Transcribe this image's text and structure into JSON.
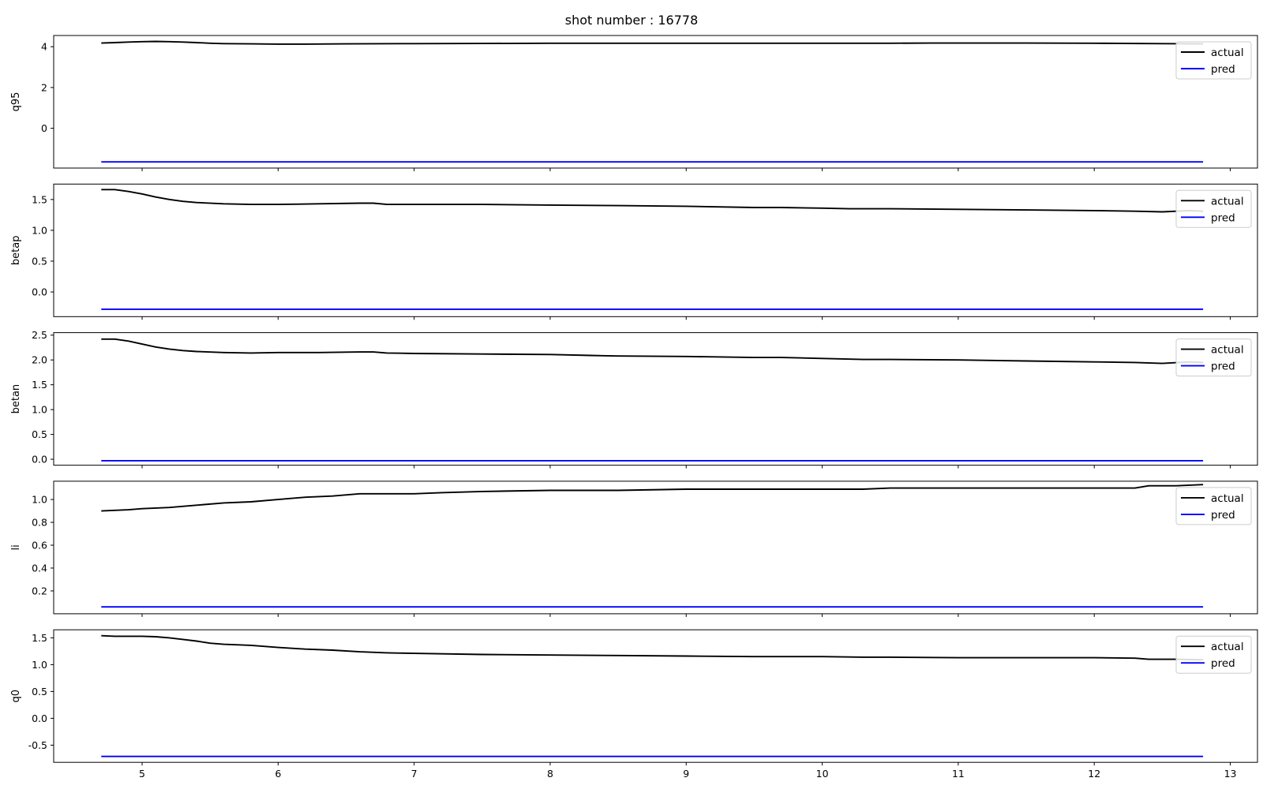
{
  "figure": {
    "title": "shot number : 16778"
  },
  "colors": {
    "actual": "#000000",
    "pred": "#0000ff"
  },
  "chart_data": [
    {
      "type": "line",
      "ylabel": "q95",
      "xlim": [
        4.35,
        13.2
      ],
      "ylim": [
        -1.95,
        4.55
      ],
      "xticks": [
        5,
        6,
        7,
        8,
        9,
        10,
        11,
        12,
        13
      ],
      "yticks": [
        0,
        2,
        4
      ],
      "legend": "top-right",
      "series": [
        {
          "name": "actual",
          "color": "#000000",
          "points": [
            [
              4.7,
              4.18
            ],
            [
              4.8,
              4.2
            ],
            [
              4.9,
              4.23
            ],
            [
              5.0,
              4.25
            ],
            [
              5.1,
              4.26
            ],
            [
              5.2,
              4.25
            ],
            [
              5.3,
              4.23
            ],
            [
              5.4,
              4.2
            ],
            [
              5.5,
              4.17
            ],
            [
              5.6,
              4.15
            ],
            [
              5.8,
              4.14
            ],
            [
              6.0,
              4.13
            ],
            [
              6.2,
              4.13
            ],
            [
              6.5,
              4.14
            ],
            [
              7.0,
              4.15
            ],
            [
              7.5,
              4.16
            ],
            [
              8.0,
              4.17
            ],
            [
              8.5,
              4.17
            ],
            [
              9.0,
              4.17
            ],
            [
              9.5,
              4.17
            ],
            [
              10.0,
              4.17
            ],
            [
              10.5,
              4.17
            ],
            [
              10.8,
              4.18
            ],
            [
              11.0,
              4.18
            ],
            [
              11.5,
              4.18
            ],
            [
              12.0,
              4.17
            ],
            [
              12.5,
              4.15
            ],
            [
              12.8,
              4.14
            ]
          ]
        },
        {
          "name": "pred",
          "color": "#0000ff",
          "points": [
            [
              4.7,
              -1.65
            ],
            [
              12.8,
              -1.65
            ]
          ]
        }
      ]
    },
    {
      "type": "line",
      "ylabel": "betap",
      "xlim": [
        4.35,
        13.2
      ],
      "ylim": [
        -0.4,
        1.75
      ],
      "xticks": [
        5,
        6,
        7,
        8,
        9,
        10,
        11,
        12,
        13
      ],
      "yticks": [
        0.0,
        0.5,
        1.0,
        1.5
      ],
      "legend": "top-right",
      "series": [
        {
          "name": "actual",
          "color": "#000000",
          "points": [
            [
              4.7,
              1.66
            ],
            [
              4.8,
              1.66
            ],
            [
              4.9,
              1.63
            ],
            [
              5.0,
              1.59
            ],
            [
              5.1,
              1.54
            ],
            [
              5.2,
              1.5
            ],
            [
              5.3,
              1.47
            ],
            [
              5.4,
              1.45
            ],
            [
              5.6,
              1.43
            ],
            [
              5.8,
              1.42
            ],
            [
              6.0,
              1.42
            ],
            [
              6.3,
              1.43
            ],
            [
              6.6,
              1.44
            ],
            [
              6.7,
              1.44
            ],
            [
              6.8,
              1.42
            ],
            [
              7.0,
              1.42
            ],
            [
              7.5,
              1.42
            ],
            [
              8.0,
              1.41
            ],
            [
              8.5,
              1.4
            ],
            [
              9.0,
              1.39
            ],
            [
              9.5,
              1.37
            ],
            [
              9.7,
              1.37
            ],
            [
              10.0,
              1.36
            ],
            [
              10.2,
              1.35
            ],
            [
              10.5,
              1.35
            ],
            [
              11.0,
              1.34
            ],
            [
              11.5,
              1.33
            ],
            [
              12.0,
              1.32
            ],
            [
              12.3,
              1.31
            ],
            [
              12.5,
              1.3
            ],
            [
              12.7,
              1.32
            ],
            [
              12.8,
              1.31
            ]
          ]
        },
        {
          "name": "pred",
          "color": "#0000ff",
          "points": [
            [
              4.7,
              -0.28
            ],
            [
              12.8,
              -0.28
            ]
          ]
        }
      ]
    },
    {
      "type": "line",
      "ylabel": "betan",
      "xlim": [
        4.35,
        13.2
      ],
      "ylim": [
        -0.12,
        2.55
      ],
      "xticks": [
        5,
        6,
        7,
        8,
        9,
        10,
        11,
        12,
        13
      ],
      "yticks": [
        0.0,
        0.5,
        1.0,
        1.5,
        2.0,
        2.5
      ],
      "legend": "top-right",
      "series": [
        {
          "name": "actual",
          "color": "#000000",
          "points": [
            [
              4.7,
              2.42
            ],
            [
              4.8,
              2.42
            ],
            [
              4.9,
              2.38
            ],
            [
              5.0,
              2.32
            ],
            [
              5.1,
              2.26
            ],
            [
              5.2,
              2.22
            ],
            [
              5.3,
              2.19
            ],
            [
              5.4,
              2.17
            ],
            [
              5.6,
              2.15
            ],
            [
              5.8,
              2.14
            ],
            [
              6.0,
              2.15
            ],
            [
              6.3,
              2.15
            ],
            [
              6.6,
              2.16
            ],
            [
              6.7,
              2.16
            ],
            [
              6.8,
              2.14
            ],
            [
              7.0,
              2.13
            ],
            [
              7.5,
              2.12
            ],
            [
              8.0,
              2.11
            ],
            [
              8.3,
              2.09
            ],
            [
              8.5,
              2.08
            ],
            [
              9.0,
              2.07
            ],
            [
              9.5,
              2.05
            ],
            [
              9.7,
              2.05
            ],
            [
              10.0,
              2.03
            ],
            [
              10.3,
              2.01
            ],
            [
              10.5,
              2.01
            ],
            [
              11.0,
              2.0
            ],
            [
              11.5,
              1.98
            ],
            [
              12.0,
              1.96
            ],
            [
              12.3,
              1.95
            ],
            [
              12.5,
              1.93
            ],
            [
              12.7,
              1.96
            ],
            [
              12.8,
              1.95
            ]
          ]
        },
        {
          "name": "pred",
          "color": "#0000ff",
          "points": [
            [
              4.7,
              -0.03
            ],
            [
              12.8,
              -0.03
            ]
          ]
        }
      ]
    },
    {
      "type": "line",
      "ylabel": "li",
      "xlim": [
        4.35,
        13.2
      ],
      "ylim": [
        0.0,
        1.16
      ],
      "xticks": [
        5,
        6,
        7,
        8,
        9,
        10,
        11,
        12,
        13
      ],
      "yticks": [
        0.2,
        0.4,
        0.6,
        0.8,
        1.0
      ],
      "legend": "top-right",
      "series": [
        {
          "name": "actual",
          "color": "#000000",
          "points": [
            [
              4.7,
              0.9
            ],
            [
              4.9,
              0.91
            ],
            [
              5.0,
              0.92
            ],
            [
              5.2,
              0.93
            ],
            [
              5.4,
              0.95
            ],
            [
              5.6,
              0.97
            ],
            [
              5.8,
              0.98
            ],
            [
              6.0,
              1.0
            ],
            [
              6.2,
              1.02
            ],
            [
              6.4,
              1.03
            ],
            [
              6.6,
              1.05
            ],
            [
              6.8,
              1.05
            ],
            [
              7.0,
              1.05
            ],
            [
              7.2,
              1.06
            ],
            [
              7.5,
              1.07
            ],
            [
              8.0,
              1.08
            ],
            [
              8.5,
              1.08
            ],
            [
              9.0,
              1.09
            ],
            [
              9.5,
              1.09
            ],
            [
              10.0,
              1.09
            ],
            [
              10.3,
              1.09
            ],
            [
              10.5,
              1.1
            ],
            [
              11.0,
              1.1
            ],
            [
              11.5,
              1.1
            ],
            [
              12.0,
              1.1
            ],
            [
              12.3,
              1.1
            ],
            [
              12.4,
              1.12
            ],
            [
              12.6,
              1.12
            ],
            [
              12.8,
              1.13
            ]
          ]
        },
        {
          "name": "pred",
          "color": "#0000ff",
          "points": [
            [
              4.7,
              0.06
            ],
            [
              12.8,
              0.06
            ]
          ]
        }
      ]
    },
    {
      "type": "line",
      "ylabel": "q0",
      "xlim": [
        4.35,
        13.2
      ],
      "ylim": [
        -0.82,
        1.65
      ],
      "xticks": [
        5,
        6,
        7,
        8,
        9,
        10,
        11,
        12,
        13
      ],
      "yticks": [
        -0.5,
        0.0,
        0.5,
        1.0,
        1.5
      ],
      "legend": "top-right",
      "series": [
        {
          "name": "actual",
          "color": "#000000",
          "points": [
            [
              4.7,
              1.54
            ],
            [
              4.8,
              1.53
            ],
            [
              4.9,
              1.53
            ],
            [
              5.0,
              1.53
            ],
            [
              5.1,
              1.52
            ],
            [
              5.2,
              1.5
            ],
            [
              5.3,
              1.47
            ],
            [
              5.4,
              1.44
            ],
            [
              5.5,
              1.4
            ],
            [
              5.6,
              1.38
            ],
            [
              5.8,
              1.36
            ],
            [
              6.0,
              1.32
            ],
            [
              6.2,
              1.29
            ],
            [
              6.4,
              1.27
            ],
            [
              6.6,
              1.24
            ],
            [
              6.8,
              1.22
            ],
            [
              7.0,
              1.21
            ],
            [
              7.5,
              1.19
            ],
            [
              8.0,
              1.18
            ],
            [
              8.5,
              1.17
            ],
            [
              9.0,
              1.16
            ],
            [
              9.5,
              1.15
            ],
            [
              10.0,
              1.15
            ],
            [
              10.3,
              1.14
            ],
            [
              10.5,
              1.14
            ],
            [
              11.0,
              1.13
            ],
            [
              11.5,
              1.13
            ],
            [
              12.0,
              1.13
            ],
            [
              12.3,
              1.12
            ],
            [
              12.4,
              1.1
            ],
            [
              12.6,
              1.1
            ],
            [
              12.8,
              1.09
            ]
          ]
        },
        {
          "name": "pred",
          "color": "#0000ff",
          "points": [
            [
              4.7,
              -0.71
            ],
            [
              12.8,
              -0.71
            ]
          ]
        }
      ]
    }
  ]
}
